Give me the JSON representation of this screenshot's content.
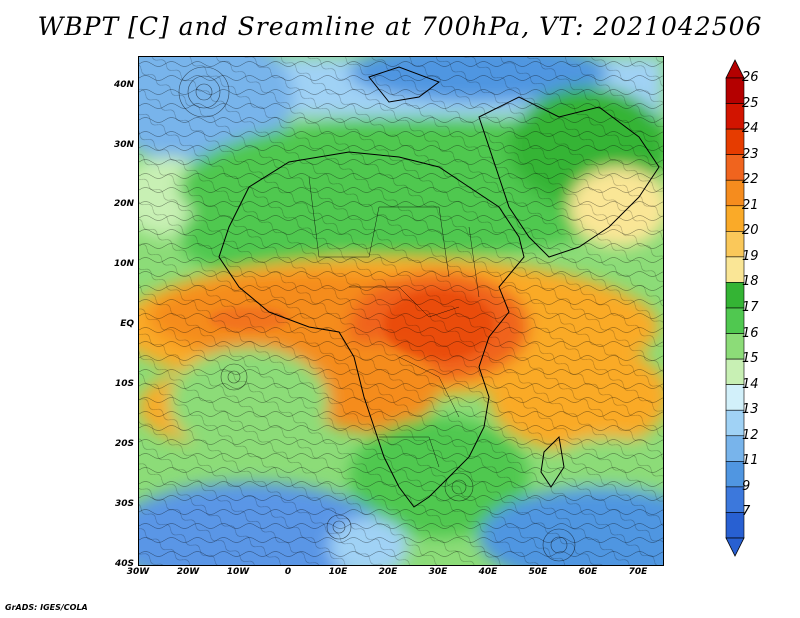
{
  "title": "WBPT [C] and Sreamline at 700hPa, VT: 2021042506",
  "credit": "GrADS: IGES/COLA",
  "map": {
    "lat_labels": [
      "40N",
      "30N",
      "20N",
      "10N",
      "EQ",
      "10S",
      "20S",
      "30S",
      "40S"
    ],
    "lon_labels": [
      "30W",
      "20W",
      "10W",
      "0",
      "10E",
      "20E",
      "30E",
      "40E",
      "50E",
      "60E",
      "70E"
    ],
    "lat_range": [
      -40,
      45
    ],
    "lon_range": [
      -30,
      75
    ]
  },
  "colorbar": {
    "labels": [
      "26",
      "25",
      "24",
      "23",
      "22",
      "21",
      "20",
      "19",
      "18",
      "17",
      "16",
      "15",
      "14",
      "13",
      "12",
      "11",
      "9",
      "7"
    ],
    "colors": [
      "#b40000",
      "#d21400",
      "#e63c00",
      "#f0641e",
      "#f58c1e",
      "#faaa28",
      "#fac85a",
      "#fae696",
      "#34b434",
      "#50c850",
      "#8cdc78",
      "#c8f0b4",
      "#d2f0fa",
      "#a0d2f5",
      "#78b4eb",
      "#5096e1",
      "#3c78dc",
      "#2860d2"
    ]
  },
  "regions": {
    "north_cool": "#78b4eb",
    "green_band": "#50c850",
    "tropical_warm": "#f58c1e",
    "hot_core": "#e65a14",
    "south_cool": "#5a96e6"
  }
}
